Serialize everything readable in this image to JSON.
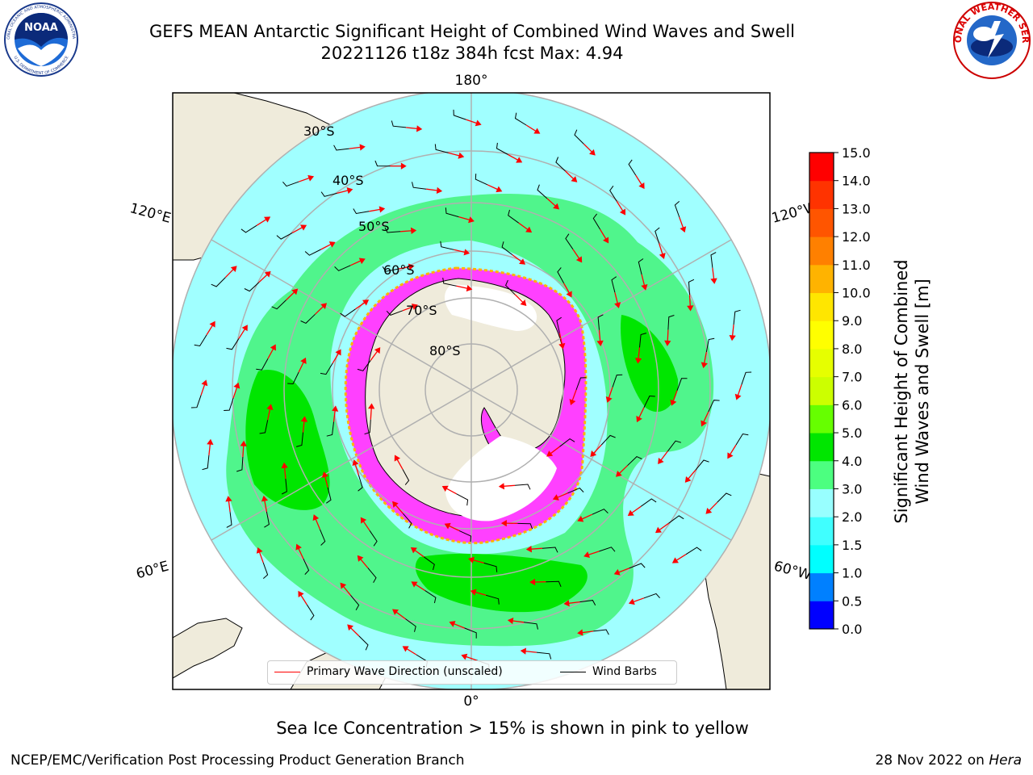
{
  "title": {
    "line1": "GEFS MEAN Antarctic Significant Height of Combined Wind Waves and Swell",
    "line2": "20221126 t18z 384h fcst   Max: 4.94"
  },
  "logos": {
    "noaa": {
      "text": "NOAA",
      "ring_top": "NATIONAL OCEANIC AND ATMOSPHERIC ADMINISTRATION",
      "ring_bottom": "U.S. DEPARTMENT OF COMMERCE"
    },
    "nws": {
      "ring": "NATIONAL WEATHER SERVICE"
    }
  },
  "map": {
    "projection": "south-polar-stereographic",
    "longitude_labels": {
      "top": "180°",
      "bottom": "0°",
      "upper_left": "120°E",
      "upper_right": "120°W",
      "lower_left": "60°E",
      "lower_right": "60°W"
    },
    "latitude_labels": [
      "30°S",
      "40°S",
      "50°S",
      "60°S",
      "70°S",
      "80°S"
    ]
  },
  "legend": {
    "primary_wave": "Primary Wave Direction (unscaled)",
    "wind_barbs": "Wind Barbs",
    "primary_wave_color": "#ff0000",
    "wind_barbs_color": "#000000"
  },
  "colorbar": {
    "label": "Significant Height of Combined Wind Waves and Swell [m]",
    "label_line1": "Significant Height of Combined",
    "label_line2": "Wind Waves and Swell [m]",
    "ticks": [
      "0.0",
      "0.5",
      "1.0",
      "1.5",
      "2.0",
      "3.0",
      "4.0",
      "5.0",
      "6.0",
      "7.0",
      "8.0",
      "9.0",
      "10.0",
      "11.0",
      "12.0",
      "13.0",
      "14.0",
      "15.0"
    ],
    "colors": [
      "#0000ff",
      "#0080ff",
      "#00ffff",
      "#40ffff",
      "#98ffff",
      "#4cff80",
      "#00e600",
      "#66ff00",
      "#ccff00",
      "#e6ff00",
      "#ffff00",
      "#ffe600",
      "#ffb300",
      "#ff8000",
      "#ff5500",
      "#ff3300",
      "#ff0000"
    ]
  },
  "colors": {
    "land": "#efebdb",
    "ocean_2_3m": "#a0ffff",
    "ocean_3_4m": "#50f58c",
    "ocean_4_5m": "#00e600",
    "sea_ice": "#ff40ff",
    "graticule": "#b0b0b0"
  },
  "footer": {
    "sea_ice_note": "Sea Ice Concentration > 15% is shown in pink to yellow",
    "credit": "NCEP/EMC/Verification Post Processing Product Generation Branch",
    "date": "28 Nov 2022 on",
    "machine": "Hera"
  }
}
